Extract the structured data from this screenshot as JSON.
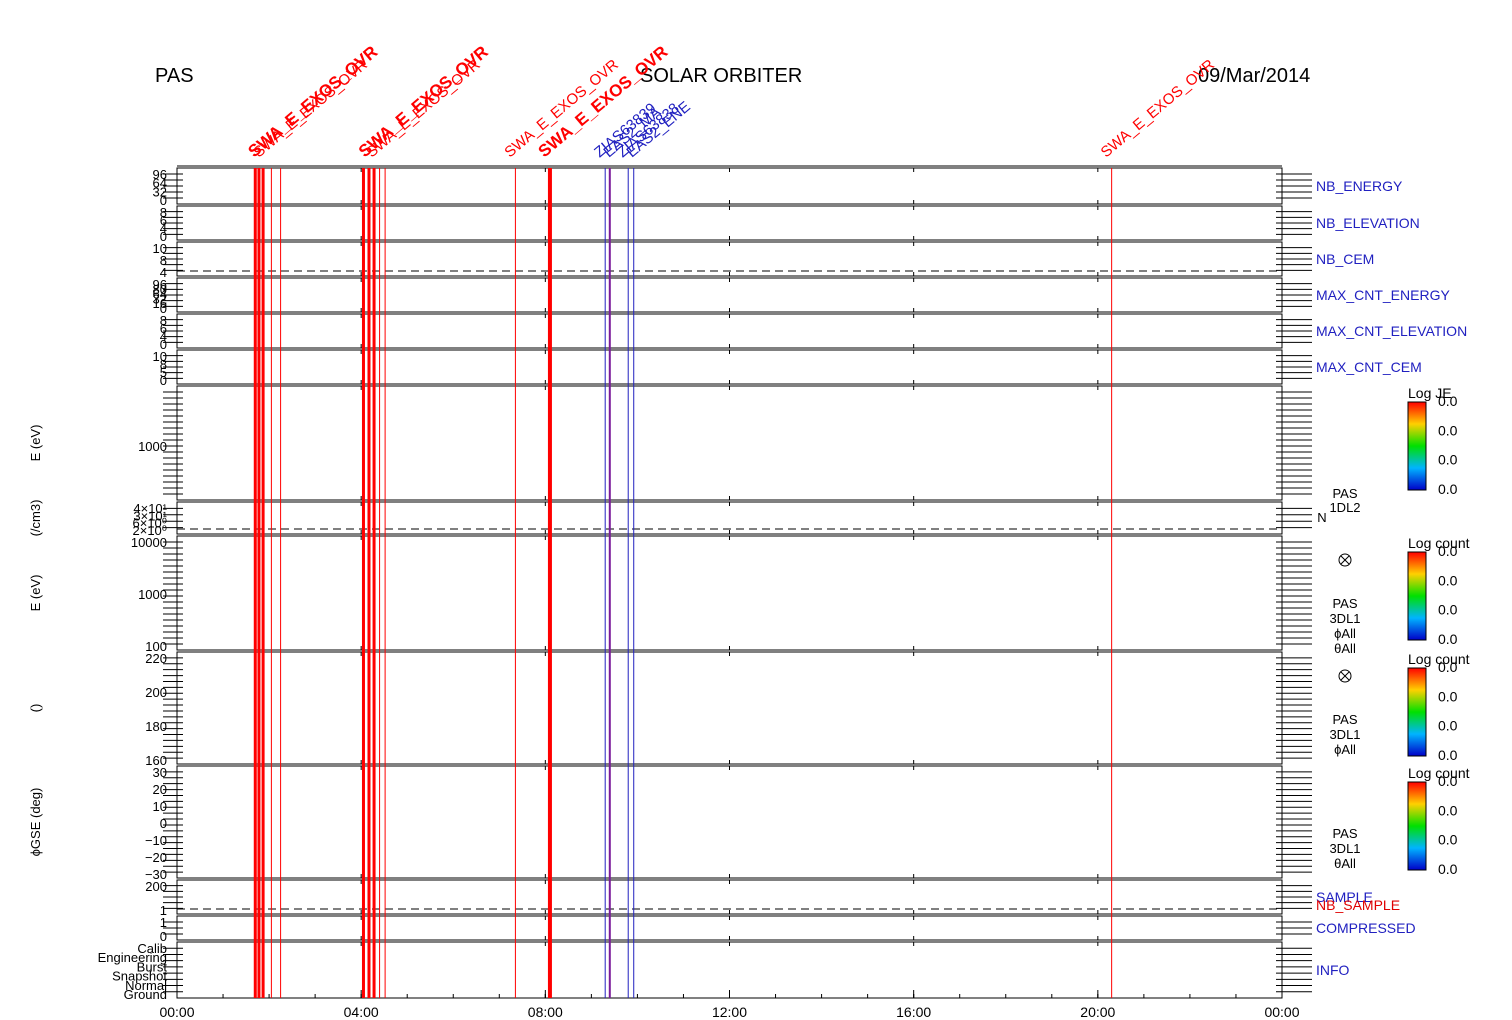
{
  "header": {
    "instrument": "PAS",
    "mission": "SOLAR ORBITER",
    "date": "09/Mar/2014"
  },
  "colors": {
    "event_red": "#ff0000",
    "event_blue": "#2020c0",
    "panel_label_blue": "#2020c0",
    "panel_label_red": "#e00000"
  },
  "chart_data": {
    "type": "line",
    "x_axis": {
      "range": [
        "00:00",
        "24:00"
      ],
      "tick_labels": [
        "00:00",
        "04:00",
        "08:00",
        "12:00",
        "16:00",
        "20:00",
        "00:00"
      ],
      "tick_hours": [
        0,
        4,
        8,
        12,
        16,
        20,
        24
      ]
    },
    "panels": [
      {
        "id": "nb-energy",
        "right_label": "NB_ENERGY",
        "right_color": "blue",
        "left_ticks": [
          "96",
          "64",
          "32",
          "0"
        ],
        "dashed": false
      },
      {
        "id": "nb-elevation",
        "right_label": "NB_ELEVATION",
        "right_color": "blue",
        "left_ticks": [
          "8",
          "6",
          "4",
          "0"
        ],
        "dashed": false
      },
      {
        "id": "nb-cem",
        "right_label": "NB_CEM",
        "right_color": "blue",
        "left_ticks": [
          "10",
          "8",
          "4"
        ],
        "dashed": true
      },
      {
        "id": "max-cnt-energy",
        "right_label": "MAX_CNT_ENERGY",
        "right_color": "blue",
        "left_ticks": [
          "96",
          "80",
          "64",
          "32",
          "16",
          "0"
        ],
        "dashed": false
      },
      {
        "id": "max-cnt-elevation",
        "right_label": "MAX_CNT_ELEVATION",
        "right_color": "blue",
        "left_ticks": [
          "8",
          "6",
          "4",
          "0"
        ],
        "dashed": false
      },
      {
        "id": "max-cnt-cem",
        "right_label": "MAX_CNT_CEM",
        "right_color": "blue",
        "left_ticks": [
          "10",
          "8",
          "5",
          "0"
        ],
        "dashed": false
      },
      {
        "id": "spec-1dl2",
        "ylabel": "E (eV)",
        "left_ticks": [
          "1000"
        ],
        "right_text": [
          "PAS",
          "1DL2"
        ],
        "colorbar": {
          "title": "Log JE",
          "labels": [
            "0.0",
            "0.0",
            "0.0",
            "0.0"
          ]
        }
      },
      {
        "id": "density",
        "ylabel": "(/cm3)",
        "left_ticks": [
          "4×10¹",
          "3×10¹",
          "6×10⁰",
          "2×10⁰"
        ],
        "right_text": [
          "N"
        ],
        "dashed": true
      },
      {
        "id": "spec-3dl1-e",
        "ylabel": "E (eV)",
        "left_ticks": [
          "10000",
          "1000",
          "100"
        ],
        "right_text": [
          "PAS",
          "3DL1",
          "ϕAll",
          "θAll"
        ],
        "colorbar": {
          "title": "Log count",
          "labels": [
            "0.0",
            "0.0",
            "0.0",
            "0.0"
          ]
        }
      },
      {
        "id": "spec-3dl1-theta",
        "ylabel": "()",
        "left_ticks": [
          "220",
          "200",
          "180",
          "160"
        ],
        "right_text": [
          "PAS",
          "3DL1",
          "ϕAll"
        ],
        "colorbar": {
          "title": "Log count",
          "labels": [
            "0.0",
            "0.0",
            "0.0",
            "0.0"
          ]
        }
      },
      {
        "id": "spec-3dl1-phi",
        "ylabel": "ϕGSE (deg)",
        "left_ticks": [
          "30",
          "20",
          "10",
          "0",
          "−10",
          "−20",
          "−30"
        ],
        "right_text": [
          "PAS",
          "3DL1",
          "θAll"
        ],
        "colorbar": {
          "title": "Log count",
          "labels": [
            "0.0",
            "0.0",
            "0.0",
            "0.0"
          ]
        }
      },
      {
        "id": "sample",
        "right_label": "SAMPLE",
        "right_label_2": "NB_SAMPLE",
        "left_ticks": [
          "200",
          "1"
        ],
        "dashed": true
      },
      {
        "id": "compressed",
        "right_label": "COMPRESSED",
        "right_color": "blue",
        "left_ticks": [
          "1",
          "0"
        ],
        "dashed": false
      },
      {
        "id": "info",
        "right_label": "INFO",
        "right_color": "blue",
        "left_ticks": [
          "Calib",
          "Engineering",
          "Burst",
          "Snapshot",
          "Normal",
          "Ground"
        ],
        "dashed": false
      }
    ],
    "event_lines_hours": [
      {
        "h": 1.7,
        "color": "red",
        "w": 3
      },
      {
        "h": 1.78,
        "color": "red",
        "w": 3
      },
      {
        "h": 1.87,
        "color": "red",
        "w": 3
      },
      {
        "h": 2.05,
        "color": "red",
        "w": 1
      },
      {
        "h": 2.25,
        "color": "red",
        "w": 1
      },
      {
        "h": 4.05,
        "color": "red",
        "w": 3
      },
      {
        "h": 4.17,
        "color": "red",
        "w": 3
      },
      {
        "h": 4.28,
        "color": "red",
        "w": 3
      },
      {
        "h": 4.4,
        "color": "red",
        "w": 1
      },
      {
        "h": 4.52,
        "color": "red",
        "w": 1
      },
      {
        "h": 7.35,
        "color": "red",
        "w": 1
      },
      {
        "h": 8.1,
        "color": "red",
        "w": 4
      },
      {
        "h": 9.3,
        "color": "blue",
        "w": 1
      },
      {
        "h": 9.4,
        "color": "purple",
        "w": 2
      },
      {
        "h": 9.8,
        "color": "blue",
        "w": 1
      },
      {
        "h": 9.92,
        "color": "blue",
        "w": 1
      },
      {
        "h": 20.3,
        "color": "red",
        "w": 1
      }
    ],
    "event_annotations": [
      {
        "text": "SWA_E_EXOS_OVR",
        "h": 1.85,
        "color": "red",
        "bold": true
      },
      {
        "text": "SWA_E_EXOS_OVR",
        "h": 1.95,
        "color": "red",
        "bold": false
      },
      {
        "text": "SWA_E_EXOS_OVR",
        "h": 4.25,
        "color": "red",
        "bold": true
      },
      {
        "text": "SWA_E_EXOS_OVR",
        "h": 4.4,
        "color": "red",
        "bold": false
      },
      {
        "text": "SWA_E_EXOS_OVR",
        "h": 7.4,
        "color": "red",
        "bold": false
      },
      {
        "text": "SWA_E_EXOS_OVR",
        "h": 8.15,
        "color": "red",
        "bold": true
      },
      {
        "text": "ZIAS63839",
        "h": 9.35,
        "color": "blue",
        "bold": false
      },
      {
        "text": "EAS2_MA",
        "h": 9.55,
        "color": "blue",
        "bold": false
      },
      {
        "text": "ZIAS63838",
        "h": 9.85,
        "color": "blue",
        "bold": false
      },
      {
        "text": "EAS2_ENE",
        "h": 10.05,
        "color": "blue",
        "bold": false
      },
      {
        "text": "SWA_E_EXOS_OVR",
        "h": 20.35,
        "color": "red",
        "bold": false
      }
    ]
  }
}
